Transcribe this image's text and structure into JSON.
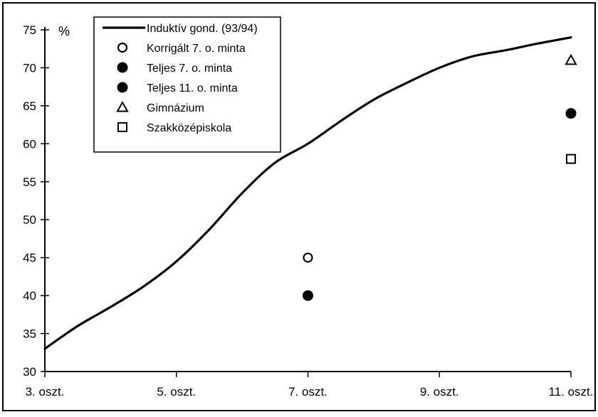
{
  "chart_data": {
    "type": "line",
    "ylabel": "%",
    "ylim": [
      30,
      75
    ],
    "y_ticks": [
      30,
      35,
      40,
      45,
      50,
      55,
      60,
      65,
      70,
      75
    ],
    "categories": [
      "3. oszt.",
      "5. oszt.",
      "7. oszt.",
      "9. oszt.",
      "11. oszt."
    ],
    "grid": false,
    "legend_position": "top-left",
    "series": [
      {
        "name": "Induktív gond. (93/94)",
        "kind": "line",
        "marker": "none",
        "color": "#000000",
        "points": [
          {
            "x": 3,
            "y": 33
          },
          {
            "x": 3.5,
            "y": 36
          },
          {
            "x": 4,
            "y": 38.5
          },
          {
            "x": 4.5,
            "y": 41.2
          },
          {
            "x": 5,
            "y": 44.5
          },
          {
            "x": 5.5,
            "y": 48.7
          },
          {
            "x": 6,
            "y": 53.5
          },
          {
            "x": 6.5,
            "y": 57.5
          },
          {
            "x": 7,
            "y": 60
          },
          {
            "x": 7.5,
            "y": 63
          },
          {
            "x": 8,
            "y": 65.8
          },
          {
            "x": 8.5,
            "y": 68
          },
          {
            "x": 9,
            "y": 70
          },
          {
            "x": 9.5,
            "y": 71.5
          },
          {
            "x": 10,
            "y": 72.3
          },
          {
            "x": 10.5,
            "y": 73.2
          },
          {
            "x": 11,
            "y": 74
          }
        ]
      },
      {
        "name": "Korrigált 7. o. minta",
        "kind": "point",
        "marker": "circle-open",
        "points": [
          {
            "x": 7,
            "y": 45
          }
        ]
      },
      {
        "name": "Teljes 7. o. minta",
        "kind": "point",
        "marker": "circle-filled",
        "points": [
          {
            "x": 7,
            "y": 40
          }
        ]
      },
      {
        "name": "Teljes 11. o. minta",
        "kind": "point",
        "marker": "circle-filled",
        "points": [
          {
            "x": 11,
            "y": 64
          }
        ]
      },
      {
        "name": "Gimnázium",
        "kind": "point",
        "marker": "triangle-open",
        "points": [
          {
            "x": 11,
            "y": 71
          }
        ]
      },
      {
        "name": "Szakközépiskola",
        "kind": "point",
        "marker": "square-open",
        "points": [
          {
            "x": 11,
            "y": 58
          }
        ]
      }
    ]
  }
}
